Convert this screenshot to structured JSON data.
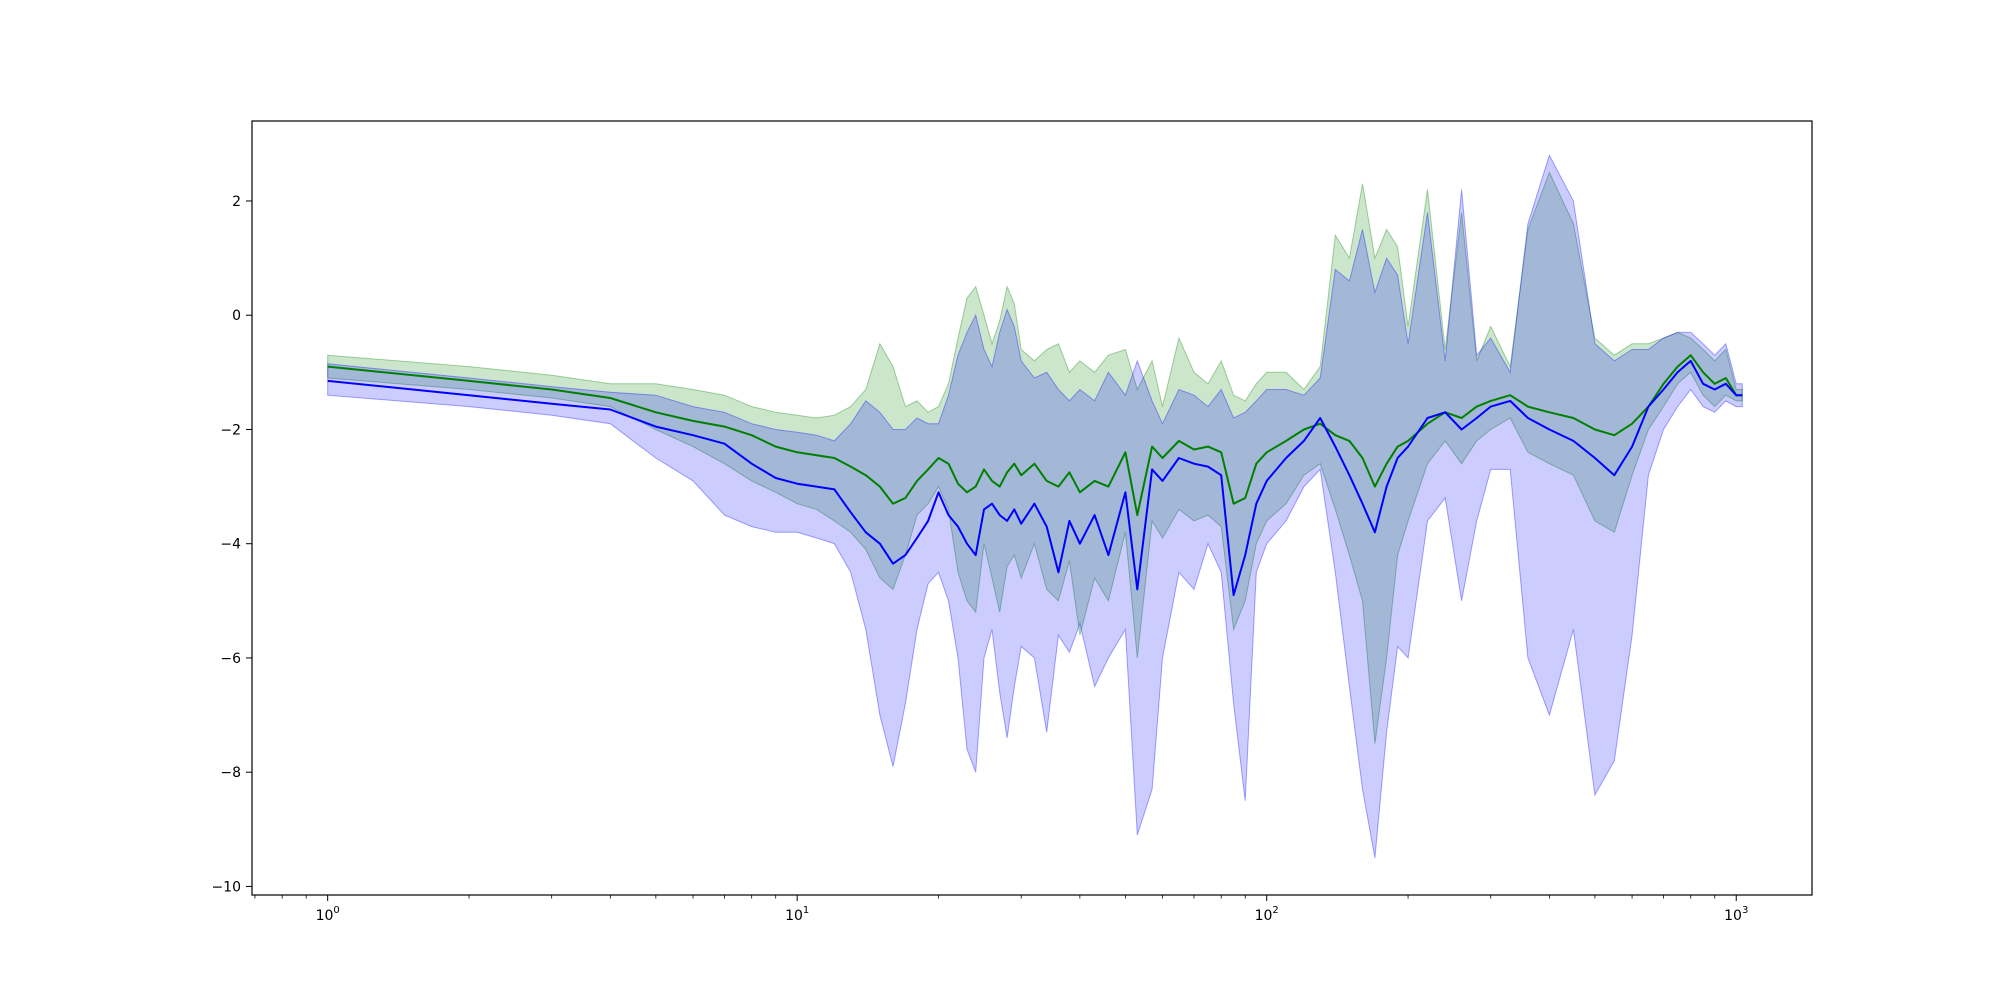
{
  "chart_data": {
    "type": "line",
    "title": "",
    "xlabel": "",
    "ylabel": "",
    "x_scale": "log",
    "xlim": [
      0.69,
      1450
    ],
    "ylim": [
      -10.15,
      3.4
    ],
    "grid": false,
    "x_ticks": [
      {
        "value": 1,
        "base": "10",
        "exp": "0"
      },
      {
        "value": 10,
        "base": "10",
        "exp": "1"
      },
      {
        "value": 100,
        "base": "10",
        "exp": "2"
      },
      {
        "value": 1000,
        "base": "10",
        "exp": "3"
      }
    ],
    "y_ticks": [
      {
        "value": 2,
        "label": "2"
      },
      {
        "value": 0,
        "label": "0"
      },
      {
        "value": -2,
        "label": "−2"
      },
      {
        "value": -4,
        "label": "−4"
      },
      {
        "value": -6,
        "label": "−6"
      },
      {
        "value": -8,
        "label": "−8"
      },
      {
        "value": -10,
        "label": "−10"
      }
    ],
    "series": [
      {
        "color": "#008000",
        "band_color": "#008000",
        "band_opacity": 0.2,
        "x": [
          1,
          2,
          3,
          4,
          5,
          6,
          7,
          8,
          9,
          10,
          11,
          12,
          13,
          14,
          15,
          16,
          17,
          18,
          19,
          20,
          21,
          22,
          23,
          24,
          25,
          26,
          27,
          28,
          29,
          30,
          32,
          34,
          36,
          38,
          40,
          43,
          46,
          50,
          53,
          57,
          60,
          65,
          70,
          75,
          80,
          85,
          90,
          95,
          100,
          110,
          120,
          130,
          140,
          150,
          160,
          170,
          180,
          190,
          200,
          220,
          240,
          260,
          280,
          300,
          330,
          360,
          400,
          450,
          500,
          550,
          600,
          650,
          700,
          750,
          800,
          850,
          900,
          950,
          1000,
          1030
        ],
        "y": [
          -0.9,
          -1.15,
          -1.3,
          -1.45,
          -1.7,
          -1.85,
          -1.95,
          -2.1,
          -2.3,
          -2.4,
          -2.45,
          -2.5,
          -2.65,
          -2.8,
          -3.0,
          -3.3,
          -3.2,
          -2.9,
          -2.7,
          -2.5,
          -2.6,
          -2.95,
          -3.1,
          -3.0,
          -2.7,
          -2.9,
          -3.0,
          -2.75,
          -2.6,
          -2.8,
          -2.6,
          -2.9,
          -3.0,
          -2.75,
          -3.1,
          -2.9,
          -3.0,
          -2.4,
          -3.5,
          -2.3,
          -2.5,
          -2.2,
          -2.35,
          -2.3,
          -2.4,
          -3.3,
          -3.2,
          -2.6,
          -2.4,
          -2.2,
          -2.0,
          -1.9,
          -2.1,
          -2.2,
          -2.5,
          -3.0,
          -2.6,
          -2.3,
          -2.2,
          -1.9,
          -1.7,
          -1.8,
          -1.6,
          -1.5,
          -1.4,
          -1.6,
          -1.7,
          -1.8,
          -2.0,
          -2.1,
          -1.9,
          -1.6,
          -1.2,
          -0.9,
          -0.7,
          -1.0,
          -1.2,
          -1.1,
          -1.4,
          -1.4
        ],
        "lower": [
          -1.1,
          -1.3,
          -1.45,
          -1.6,
          -2.0,
          -2.3,
          -2.6,
          -2.9,
          -3.1,
          -3.3,
          -3.4,
          -3.6,
          -3.8,
          -4.1,
          -4.6,
          -4.8,
          -4.2,
          -3.5,
          -3.3,
          -3.0,
          -3.4,
          -4.5,
          -5.0,
          -5.2,
          -4.0,
          -4.6,
          -5.2,
          -4.4,
          -4.2,
          -4.6,
          -4.0,
          -4.8,
          -5.0,
          -4.3,
          -5.6,
          -4.6,
          -5.0,
          -3.8,
          -6.0,
          -3.6,
          -3.9,
          -3.4,
          -3.6,
          -3.5,
          -3.7,
          -5.5,
          -5.0,
          -4.0,
          -3.6,
          -3.3,
          -2.8,
          -2.6,
          -3.4,
          -4.2,
          -5.0,
          -7.5,
          -6.0,
          -4.2,
          -3.6,
          -2.6,
          -2.2,
          -2.6,
          -2.2,
          -2.0,
          -1.8,
          -2.4,
          -2.6,
          -2.8,
          -3.6,
          -3.8,
          -2.8,
          -2.0,
          -1.6,
          -1.2,
          -1.0,
          -1.4,
          -1.6,
          -1.4,
          -1.5,
          -1.5
        ],
        "upper": [
          -0.7,
          -0.9,
          -1.05,
          -1.2,
          -1.2,
          -1.3,
          -1.4,
          -1.6,
          -1.7,
          -1.75,
          -1.8,
          -1.75,
          -1.6,
          -1.3,
          -0.5,
          -0.9,
          -1.6,
          -1.5,
          -1.7,
          -1.6,
          -1.2,
          -0.4,
          0.3,
          0.5,
          0.0,
          -0.5,
          -0.1,
          0.5,
          0.2,
          -0.6,
          -0.8,
          -0.6,
          -0.5,
          -1.0,
          -0.8,
          -1.0,
          -0.7,
          -0.6,
          -1.3,
          -0.8,
          -1.6,
          -0.4,
          -1.0,
          -1.2,
          -0.8,
          -1.4,
          -1.5,
          -1.2,
          -1.0,
          -1.0,
          -1.3,
          -0.9,
          1.4,
          1.0,
          2.3,
          1.0,
          1.5,
          1.2,
          -0.2,
          2.2,
          -0.6,
          1.8,
          -0.8,
          -0.2,
          -0.9,
          1.5,
          2.5,
          1.6,
          -0.4,
          -0.7,
          -0.5,
          -0.5,
          -0.4,
          -0.3,
          -0.4,
          -0.6,
          -0.8,
          -0.6,
          -1.3,
          -1.3
        ]
      },
      {
        "color": "#0000ff",
        "band_color": "#0000ff",
        "band_opacity": 0.2,
        "x": [
          1,
          2,
          3,
          4,
          5,
          6,
          7,
          8,
          9,
          10,
          11,
          12,
          13,
          14,
          15,
          16,
          17,
          18,
          19,
          20,
          21,
          22,
          23,
          24,
          25,
          26,
          27,
          28,
          29,
          30,
          32,
          34,
          36,
          38,
          40,
          43,
          46,
          50,
          53,
          57,
          60,
          65,
          70,
          75,
          80,
          85,
          90,
          95,
          100,
          110,
          120,
          130,
          140,
          150,
          160,
          170,
          180,
          190,
          200,
          220,
          240,
          260,
          280,
          300,
          330,
          360,
          400,
          450,
          500,
          550,
          600,
          650,
          700,
          750,
          800,
          850,
          900,
          950,
          1000,
          1030
        ],
        "y": [
          -1.15,
          -1.4,
          -1.55,
          -1.65,
          -1.95,
          -2.1,
          -2.25,
          -2.6,
          -2.85,
          -2.95,
          -3.0,
          -3.05,
          -3.45,
          -3.8,
          -4.0,
          -4.35,
          -4.2,
          -3.9,
          -3.6,
          -3.1,
          -3.5,
          -3.7,
          -4.0,
          -4.2,
          -3.4,
          -3.3,
          -3.5,
          -3.6,
          -3.4,
          -3.65,
          -3.3,
          -3.7,
          -4.5,
          -3.6,
          -4.0,
          -3.5,
          -4.2,
          -3.1,
          -4.8,
          -2.7,
          -2.9,
          -2.5,
          -2.6,
          -2.65,
          -2.8,
          -4.9,
          -4.2,
          -3.3,
          -2.9,
          -2.5,
          -2.2,
          -1.8,
          -2.3,
          -2.8,
          -3.3,
          -3.8,
          -3.0,
          -2.5,
          -2.3,
          -1.8,
          -1.7,
          -2.0,
          -1.8,
          -1.6,
          -1.5,
          -1.8,
          -2.0,
          -2.2,
          -2.5,
          -2.8,
          -2.3,
          -1.6,
          -1.3,
          -1.0,
          -0.8,
          -1.2,
          -1.3,
          -1.2,
          -1.4,
          -1.4
        ],
        "lower": [
          -1.4,
          -1.6,
          -1.75,
          -1.9,
          -2.5,
          -2.9,
          -3.5,
          -3.7,
          -3.8,
          -3.8,
          -3.9,
          -4.0,
          -4.5,
          -5.5,
          -7.0,
          -7.9,
          -6.8,
          -5.5,
          -4.7,
          -4.5,
          -5.0,
          -6.0,
          -7.6,
          -8.0,
          -6.0,
          -5.5,
          -6.6,
          -7.4,
          -6.5,
          -5.8,
          -6.0,
          -7.3,
          -5.6,
          -5.9,
          -5.4,
          -6.5,
          -6.0,
          -5.5,
          -9.1,
          -8.3,
          -6.0,
          -4.5,
          -4.8,
          -4.0,
          -4.5,
          -6.8,
          -8.5,
          -4.5,
          -4.0,
          -3.6,
          -3.0,
          -2.7,
          -4.5,
          -6.5,
          -8.3,
          -9.5,
          -7.3,
          -5.8,
          -6.0,
          -3.6,
          -3.2,
          -5.0,
          -3.6,
          -2.7,
          -2.7,
          -6.0,
          -7.0,
          -5.5,
          -8.4,
          -7.8,
          -5.6,
          -2.8,
          -2.0,
          -1.6,
          -1.3,
          -1.6,
          -1.7,
          -1.5,
          -1.6,
          -1.6
        ],
        "upper": [
          -0.85,
          -1.1,
          -1.25,
          -1.35,
          -1.4,
          -1.6,
          -1.7,
          -1.9,
          -2.0,
          -2.05,
          -2.1,
          -2.2,
          -1.9,
          -1.5,
          -1.7,
          -2.0,
          -2.0,
          -1.8,
          -1.9,
          -1.9,
          -1.4,
          -0.7,
          -0.3,
          0.0,
          -0.6,
          -0.9,
          -0.3,
          0.1,
          -0.2,
          -0.8,
          -1.1,
          -1.0,
          -1.3,
          -1.5,
          -1.3,
          -1.5,
          -1.0,
          -1.4,
          -0.8,
          -1.5,
          -1.9,
          -1.3,
          -1.4,
          -1.6,
          -1.3,
          -1.8,
          -1.7,
          -1.5,
          -1.3,
          -1.3,
          -1.4,
          -1.1,
          0.8,
          0.6,
          1.5,
          0.4,
          1.0,
          0.7,
          -0.5,
          1.8,
          -0.8,
          2.2,
          -0.7,
          -0.4,
          -1.0,
          1.6,
          2.8,
          2.0,
          -0.5,
          -0.8,
          -0.6,
          -0.6,
          -0.4,
          -0.3,
          -0.3,
          -0.5,
          -0.7,
          -0.5,
          -1.2,
          -1.2
        ]
      }
    ]
  }
}
